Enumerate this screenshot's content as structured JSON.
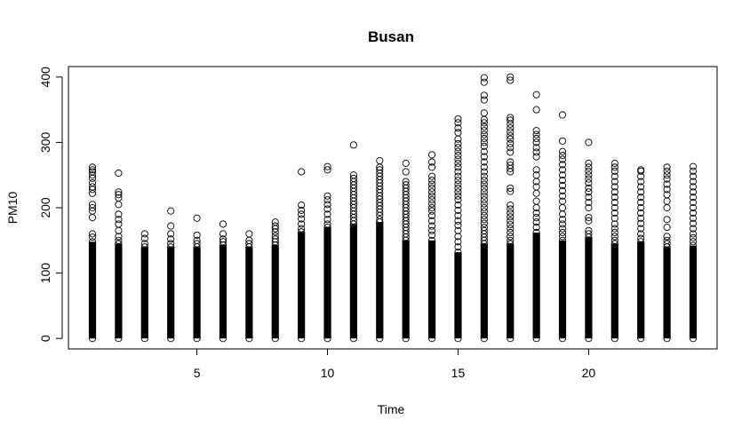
{
  "chart_data": {
    "type": "scatter",
    "title": "Busan",
    "xlabel": "Time",
    "ylabel": "PM10",
    "xlim": [
      0.08,
      24.92
    ],
    "ylim": [
      -16,
      416
    ],
    "xticks": [
      5,
      10,
      15,
      20
    ],
    "yticks": [
      0,
      100,
      200,
      300,
      400
    ],
    "grid": false,
    "legend": "none",
    "marker": "open-circle",
    "color": "#000000",
    "groups": [
      {
        "x": 1,
        "dense_max": 148,
        "outliers": [
          155,
          160,
          185,
          195,
          200,
          205,
          222,
          228,
          232,
          238,
          245,
          250,
          255,
          258,
          262
        ]
      },
      {
        "x": 2,
        "dense_max": 145,
        "outliers": [
          150,
          156,
          165,
          175,
          182,
          190,
          205,
          215,
          220,
          224,
          253
        ]
      },
      {
        "x": 3,
        "dense_max": 140,
        "outliers": [
          145,
          153,
          160
        ]
      },
      {
        "x": 4,
        "dense_max": 140,
        "outliers": [
          145,
          152,
          160,
          172,
          195
        ]
      },
      {
        "x": 5,
        "dense_max": 140,
        "outliers": [
          145,
          150,
          158,
          184
        ]
      },
      {
        "x": 6,
        "dense_max": 143,
        "outliers": [
          148,
          152,
          160,
          175
        ]
      },
      {
        "x": 7,
        "dense_max": 140,
        "outliers": [
          145,
          150,
          160
        ]
      },
      {
        "x": 8,
        "dense_max": 143,
        "outliers": [
          148,
          152,
          157,
          163,
          168,
          172,
          178
        ]
      },
      {
        "x": 9,
        "dense_max": 163,
        "outliers": [
          168,
          175,
          183,
          190,
          196,
          204,
          255
        ]
      },
      {
        "x": 10,
        "dense_max": 170,
        "outliers": [
          175,
          182,
          190,
          198,
          205,
          212,
          218,
          258,
          263
        ]
      },
      {
        "x": 11,
        "dense_max": 175,
        "outliers": [
          180,
          185,
          190,
          195,
          200,
          205,
          210,
          215,
          220,
          225,
          230,
          235,
          240,
          245,
          250,
          296
        ]
      },
      {
        "x": 12,
        "dense_max": 178,
        "outliers": [
          182,
          188,
          193,
          198,
          203,
          208,
          213,
          218,
          223,
          228,
          233,
          238,
          243,
          248,
          253,
          258,
          262,
          272
        ]
      },
      {
        "x": 13,
        "dense_max": 150,
        "outliers": [
          155,
          160,
          165,
          170,
          175,
          180,
          185,
          190,
          195,
          200,
          205,
          210,
          215,
          220,
          225,
          230,
          235,
          240,
          255,
          268
        ]
      },
      {
        "x": 14,
        "dense_max": 150,
        "outliers": [
          158,
          165,
          172,
          180,
          188,
          195,
          200,
          206,
          212,
          218,
          224,
          230,
          236,
          242,
          248,
          262,
          270,
          281
        ]
      },
      {
        "x": 15,
        "dense_max": 132,
        "outliers": [
          140,
          148,
          156,
          165,
          173,
          180,
          188,
          196,
          204,
          212,
          218,
          224,
          230,
          236,
          242,
          248,
          255,
          262,
          268,
          274,
          280,
          286,
          292,
          298,
          305,
          315,
          322,
          330,
          336
        ]
      },
      {
        "x": 16,
        "dense_max": 145,
        "outliers": [
          150,
          155,
          160,
          165,
          170,
          176,
          182,
          188,
          194,
          200,
          206,
          212,
          218,
          224,
          230,
          236,
          242,
          248,
          255,
          262,
          270,
          278,
          286,
          294,
          300,
          306,
          312,
          318,
          324,
          330,
          335,
          345,
          365,
          372,
          392,
          399
        ]
      },
      {
        "x": 17,
        "dense_max": 145,
        "outliers": [
          150,
          156,
          162,
          168,
          174,
          180,
          186,
          192,
          198,
          204,
          225,
          230,
          255,
          260,
          265,
          270,
          285,
          292,
          298,
          305,
          310,
          316,
          322,
          328,
          334,
          338,
          395,
          400
        ]
      },
      {
        "x": 18,
        "dense_max": 162,
        "outliers": [
          170,
          178,
          185,
          192,
          200,
          210,
          222,
          232,
          240,
          250,
          258,
          278,
          285,
          292,
          300,
          306,
          312,
          318,
          350,
          373
        ]
      },
      {
        "x": 19,
        "dense_max": 150,
        "outliers": [
          156,
          162,
          168,
          175,
          182,
          190,
          200,
          210,
          218,
          226,
          234,
          242,
          250,
          258,
          266,
          274,
          280,
          286,
          302,
          342
        ]
      },
      {
        "x": 20,
        "dense_max": 155,
        "outliers": [
          160,
          165,
          180,
          185,
          200,
          208,
          216,
          224,
          230,
          238,
          244,
          250,
          256,
          262,
          268,
          300
        ]
      },
      {
        "x": 21,
        "dense_max": 145,
        "outliers": [
          150,
          156,
          162,
          168,
          175,
          184,
          192,
          200,
          208,
          216,
          224,
          232,
          240,
          248,
          256,
          262,
          268
        ]
      },
      {
        "x": 22,
        "dense_max": 148,
        "outliers": [
          153,
          160,
          168,
          176,
          184,
          192,
          200,
          208,
          216,
          224,
          232,
          240,
          248,
          256,
          258
        ]
      },
      {
        "x": 23,
        "dense_max": 140,
        "outliers": [
          145,
          150,
          156,
          170,
          182,
          200,
          210,
          220,
          228,
          236,
          244,
          250,
          256,
          262
        ]
      },
      {
        "x": 24,
        "dense_max": 142,
        "outliers": [
          148,
          154,
          160,
          168,
          176,
          184,
          192,
          200,
          208,
          216,
          224,
          232,
          240,
          248,
          256,
          263
        ]
      }
    ]
  }
}
